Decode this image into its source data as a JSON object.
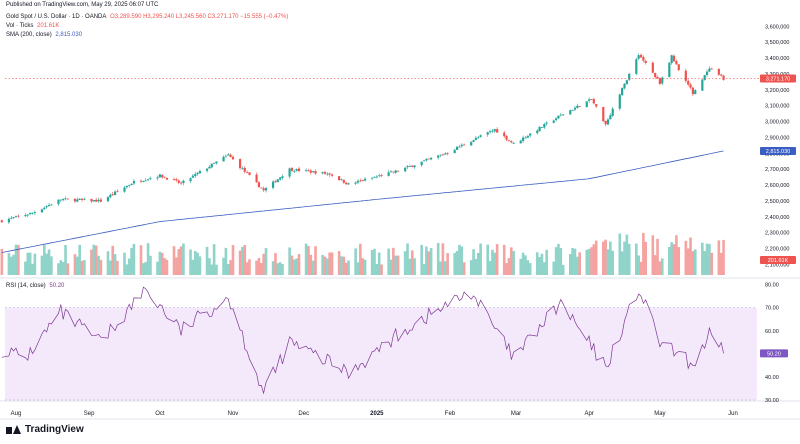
{
  "header": {
    "published": "Published on TradingView.com, May 29, 2025 06:07 UTC"
  },
  "legend": {
    "symbol": "Gold Spot / U.S. Dollar · 1D · OANDA",
    "ohlc": "O3,289.590 H3,295.240 L3,245.560 C3,271.170 −15.555 (−0.47%)",
    "vol_label": "Vol · Ticks",
    "vol_value": "201.61K",
    "sma_label": "SMA (200, close)",
    "sma_value": "2,815.030",
    "rsi_label": "RSI (14, close)",
    "rsi_value": "50.20"
  },
  "watermark": "TradingView",
  "colors": {
    "up": "#26a69a",
    "down": "#ef5350",
    "vol_up": "#8fd3c9",
    "vol_down": "#f4a3a1",
    "sma": "#3a5ec1",
    "rsi_line": "#7e3794",
    "rsi_band": "#f3e9fb",
    "price_tag": "#ef5350",
    "sma_tag": "#3a5ec1",
    "rsi_tag": "#7e57c2"
  },
  "chart_data": [
    {
      "type": "candlestick",
      "title": "Gold Spot / U.S. Dollar · 1D · OANDA",
      "x_tick_labels": [
        "Aug",
        "Sep",
        "Oct",
        "Nov",
        "Dec",
        "2025",
        "Feb",
        "Mar",
        "Apr",
        "May",
        "Jun"
      ],
      "x_tick_dates": [
        "2024-08-01",
        "2024-09-01",
        "2024-10-01",
        "2024-11-01",
        "2024-12-01",
        "2025-01-01",
        "2025-02-01",
        "2025-03-01",
        "2025-04-01",
        "2025-05-01",
        "2025-06-01"
      ],
      "y_ticks": [
        2100,
        2200,
        2300,
        2400,
        2500,
        2600,
        2700,
        2800,
        2900,
        3000,
        3100,
        3200,
        3300,
        3400,
        3500,
        3600
      ],
      "y_tick_labels": [
        "2,100,000",
        "2,200,000",
        "2,300,000",
        "2,400,000",
        "2,500,000",
        "2,600,000",
        "2,700,000",
        "2,800,000",
        "2,900,000",
        "3,000,000",
        "3,100,000",
        "3,200,000",
        "3,300,000",
        "3,400,000",
        "3,500,000",
        "3,600,000"
      ],
      "ylim": [
        2065,
        3640
      ],
      "last_price": 3271.17,
      "last_price_label": "3,271.170",
      "sma_last": 2815.03,
      "sma_last_label": "2,815.030",
      "vol_last_label": "201.61K",
      "price_keypoints": [
        {
          "date": "2024-07-26",
          "close": 2375
        },
        {
          "date": "2024-08-08",
          "close": 2425
        },
        {
          "date": "2024-08-20",
          "close": 2510
        },
        {
          "date": "2024-09-06",
          "close": 2500
        },
        {
          "date": "2024-09-20",
          "close": 2620
        },
        {
          "date": "2024-10-01",
          "close": 2660
        },
        {
          "date": "2024-10-10",
          "close": 2610
        },
        {
          "date": "2024-10-30",
          "close": 2790
        },
        {
          "date": "2024-11-14",
          "close": 2565
        },
        {
          "date": "2024-11-25",
          "close": 2700
        },
        {
          "date": "2024-12-12",
          "close": 2670
        },
        {
          "date": "2024-12-20",
          "close": 2605
        },
        {
          "date": "2025-01-10",
          "close": 2690
        },
        {
          "date": "2025-01-30",
          "close": 2800
        },
        {
          "date": "2025-02-20",
          "close": 2950
        },
        {
          "date": "2025-02-28",
          "close": 2860
        },
        {
          "date": "2025-03-20",
          "close": 3040
        },
        {
          "date": "2025-04-02",
          "close": 3140
        },
        {
          "date": "2025-04-08",
          "close": 2985
        },
        {
          "date": "2025-04-22",
          "close": 3425
        },
        {
          "date": "2025-05-01",
          "close": 3245
        },
        {
          "date": "2025-05-06",
          "close": 3410
        },
        {
          "date": "2025-05-15",
          "close": 3180
        },
        {
          "date": "2025-05-22",
          "close": 3330
        },
        {
          "date": "2025-05-28",
          "close": 3271
        }
      ],
      "sma_keypoints": [
        {
          "date": "2024-07-26",
          "close": 2175
        },
        {
          "date": "2024-10-01",
          "close": 2370
        },
        {
          "date": "2025-01-01",
          "close": 2510
        },
        {
          "date": "2025-04-01",
          "close": 2640
        },
        {
          "date": "2025-05-28",
          "close": 2815
        }
      ]
    },
    {
      "type": "line",
      "title": "RSI (14, close)",
      "y_ticks": [
        30,
        40,
        50,
        60,
        70,
        80
      ],
      "y_tick_labels": [
        "30.00",
        "40.00",
        "50.00",
        "60.00",
        "70.00",
        "80.00"
      ],
      "ylim": [
        30,
        82
      ],
      "band": [
        30,
        70
      ],
      "last_value": 50.2,
      "last_value_label": "50.20",
      "keypoints": [
        {
          "date": "2024-07-26",
          "value": 52
        },
        {
          "date": "2024-08-05",
          "value": 48
        },
        {
          "date": "2024-08-20",
          "value": 68
        },
        {
          "date": "2024-09-06",
          "value": 55
        },
        {
          "date": "2024-09-25",
          "value": 78
        },
        {
          "date": "2024-10-10",
          "value": 60
        },
        {
          "date": "2024-10-30",
          "value": 75
        },
        {
          "date": "2024-11-14",
          "value": 33
        },
        {
          "date": "2024-11-25",
          "value": 55
        },
        {
          "date": "2024-12-20",
          "value": 42
        },
        {
          "date": "2025-01-15",
          "value": 62
        },
        {
          "date": "2025-02-10",
          "value": 77
        },
        {
          "date": "2025-02-28",
          "value": 48
        },
        {
          "date": "2025-03-20",
          "value": 72
        },
        {
          "date": "2025-04-08",
          "value": 44
        },
        {
          "date": "2025-04-22",
          "value": 78
        },
        {
          "date": "2025-05-01",
          "value": 55
        },
        {
          "date": "2025-05-15",
          "value": 45
        },
        {
          "date": "2025-05-22",
          "value": 58
        },
        {
          "date": "2025-05-28",
          "value": 50.2
        }
      ]
    }
  ]
}
